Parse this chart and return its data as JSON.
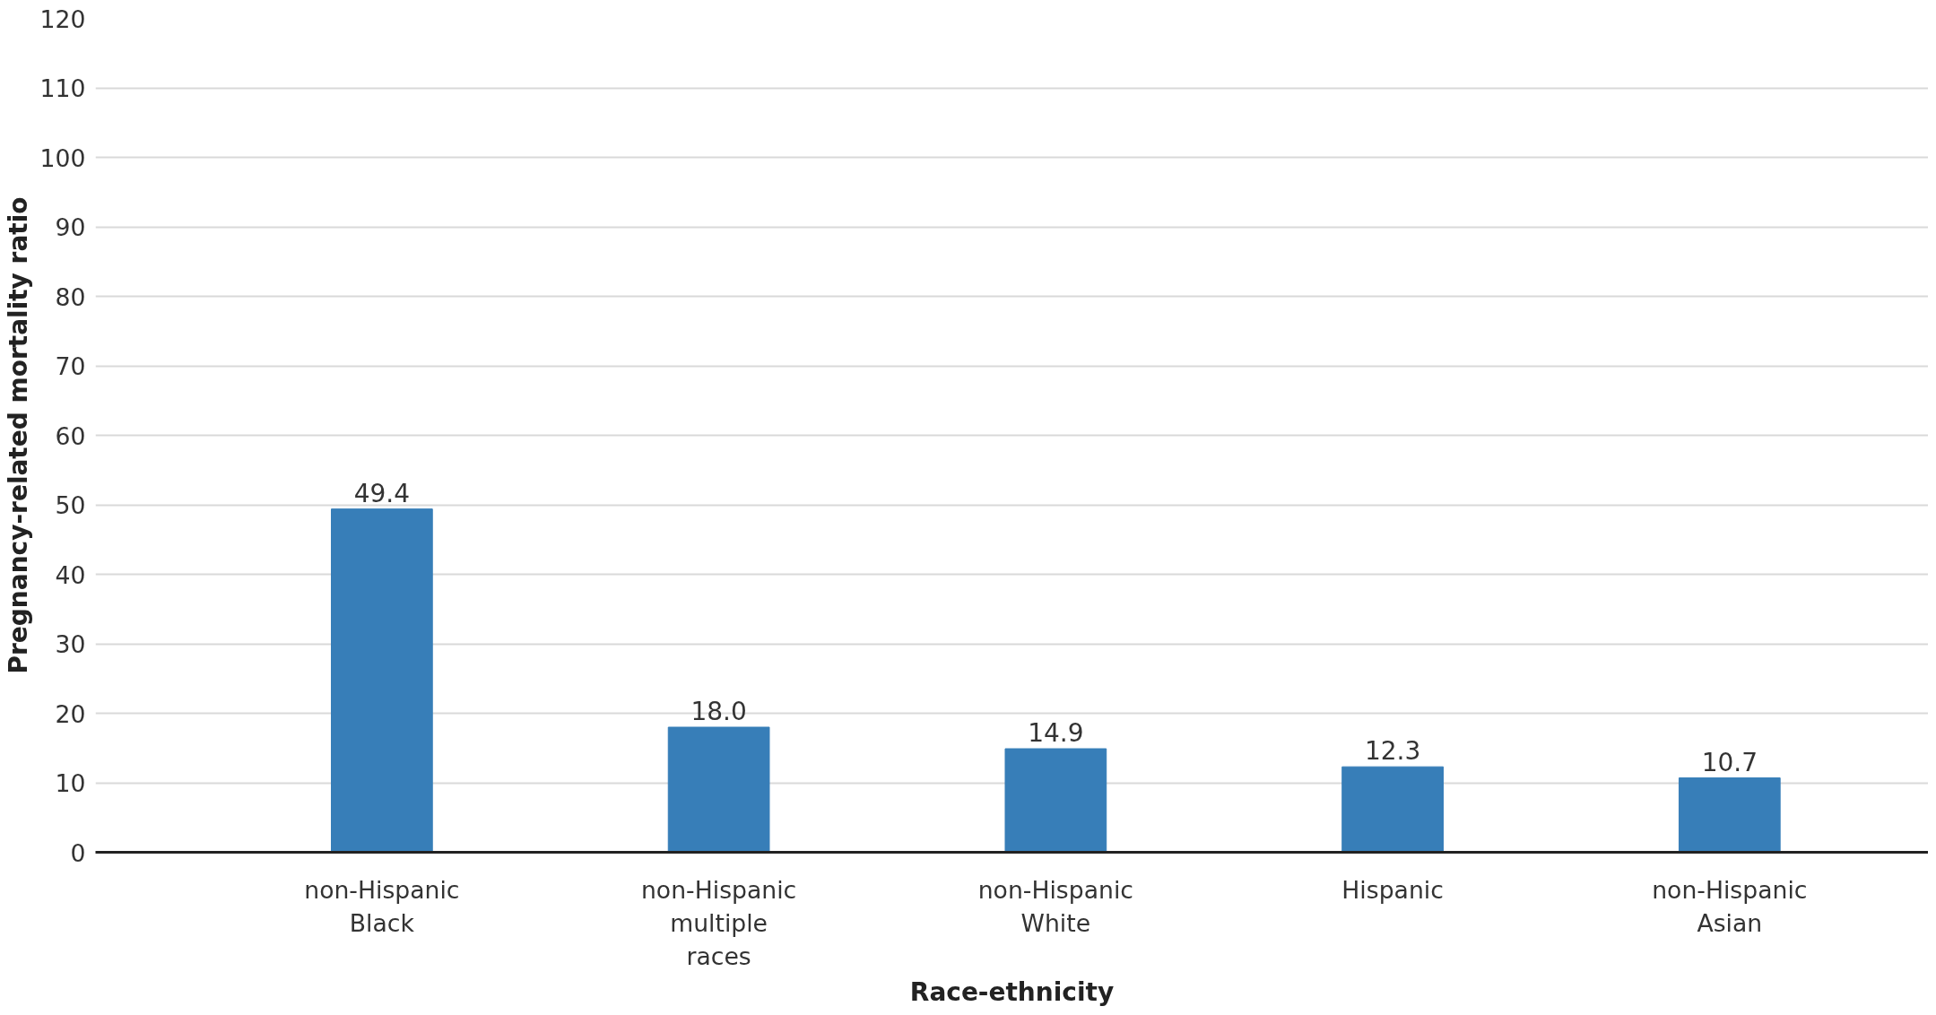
{
  "chart_data": {
    "type": "bar",
    "xlabel": "Race-ethnicity",
    "ylabel": "Pregnancy-related mortality ratio",
    "categories": [
      "non-Hispanic Black",
      "non-Hispanic multiple races",
      "non-Hispanic White",
      "Hispanic",
      "non-Hispanic Asian"
    ],
    "values": [
      49.4,
      18.0,
      14.9,
      12.3,
      10.7
    ],
    "value_labels": [
      "49.4",
      "18.0",
      "14.9",
      "12.3",
      "10.7"
    ],
    "color": "#377eb8",
    "ylim": [
      0,
      120
    ],
    "yticks": [
      0,
      10,
      20,
      30,
      40,
      50,
      60,
      70,
      80,
      90,
      100,
      110,
      120
    ],
    "grid": "y"
  }
}
